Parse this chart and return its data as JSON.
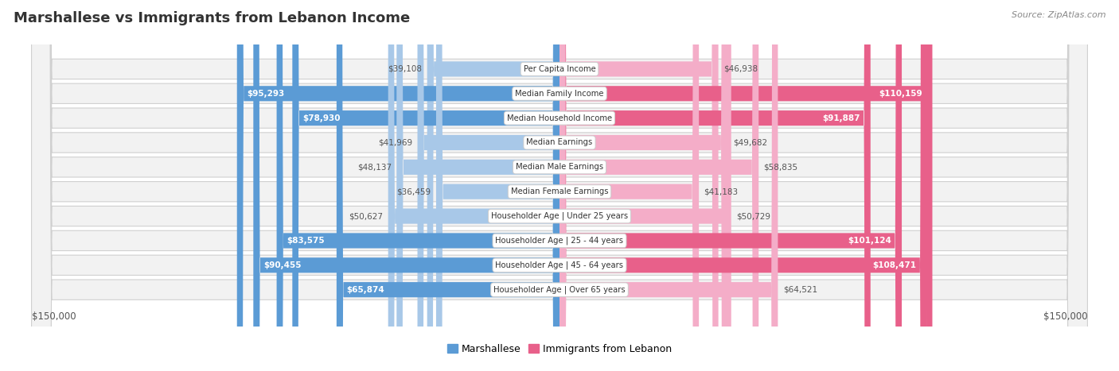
{
  "title": "Marshallese vs Immigrants from Lebanon Income",
  "source": "Source: ZipAtlas.com",
  "categories": [
    "Per Capita Income",
    "Median Family Income",
    "Median Household Income",
    "Median Earnings",
    "Median Male Earnings",
    "Median Female Earnings",
    "Householder Age | Under 25 years",
    "Householder Age | 25 - 44 years",
    "Householder Age | 45 - 64 years",
    "Householder Age | Over 65 years"
  ],
  "marshallese": [
    39108,
    95293,
    78930,
    41969,
    48137,
    36459,
    50627,
    83575,
    90455,
    65874
  ],
  "lebanon": [
    46938,
    110159,
    91887,
    49682,
    58835,
    41183,
    50729,
    101124,
    108471,
    64521
  ],
  "max_val": 150000,
  "blue_light": "#a8c8e8",
  "blue_dark": "#5b9bd5",
  "pink_light": "#f4adc8",
  "pink_dark": "#e8608a",
  "row_bg": "#f2f2f2",
  "row_border": "#d0d0d0",
  "center_bg": "#ffffff",
  "center_border": "#cccccc",
  "text_outside": "#555555",
  "text_inside": "#ffffff",
  "threshold_dark_label": 65000,
  "legend_blue": "Marshallese",
  "legend_pink": "Immigrants from Lebanon",
  "axis_label_left": "$150,000",
  "axis_label_right": "$150,000",
  "title_color": "#333333",
  "source_color": "#888888"
}
